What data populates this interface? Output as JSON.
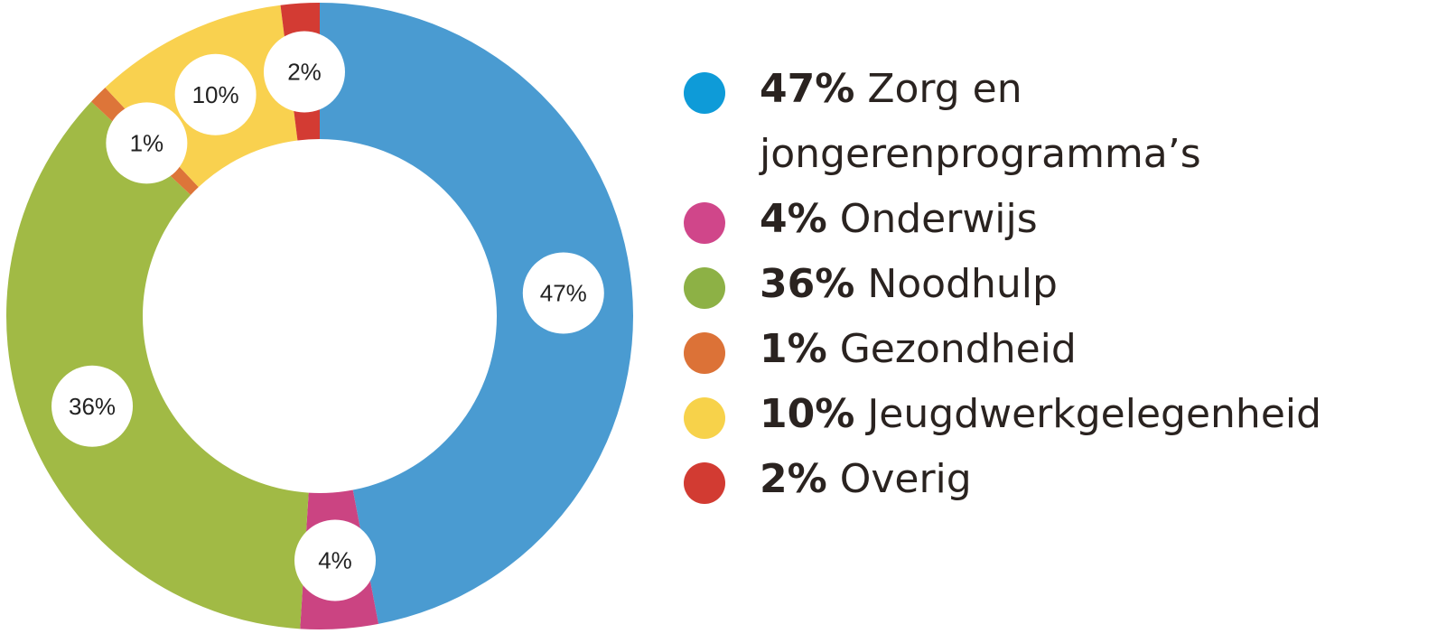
{
  "chart_data": {
    "type": "pie",
    "style": "donut",
    "title": "",
    "legend_position": "right",
    "slices": [
      {
        "label": "Zorg en jongerenprogramma’s",
        "value": 47,
        "value_label": "47%",
        "color": "#4a9bd1",
        "legend_color": "#0e9bd8"
      },
      {
        "label": "Onderwijs",
        "value": 4,
        "value_label": "4%",
        "color": "#cb4482",
        "legend_color": "#d0468a"
      },
      {
        "label": "Noodhulp",
        "value": 36,
        "value_label": "36%",
        "color": "#a1ba45",
        "legend_color": "#8db145"
      },
      {
        "label": "Gezondheid",
        "value": 1,
        "value_label": "1%",
        "color": "#dd7539",
        "legend_color": "#dc7237"
      },
      {
        "label": "Jeugdwerkgelegenheid",
        "value": 10,
        "value_label": "10%",
        "color": "#f9d14f",
        "legend_color": "#f7d24a"
      },
      {
        "label": "Overig",
        "value": 2,
        "value_label": "2%",
        "color": "#d33b33",
        "legend_color": "#d23b32"
      }
    ]
  }
}
